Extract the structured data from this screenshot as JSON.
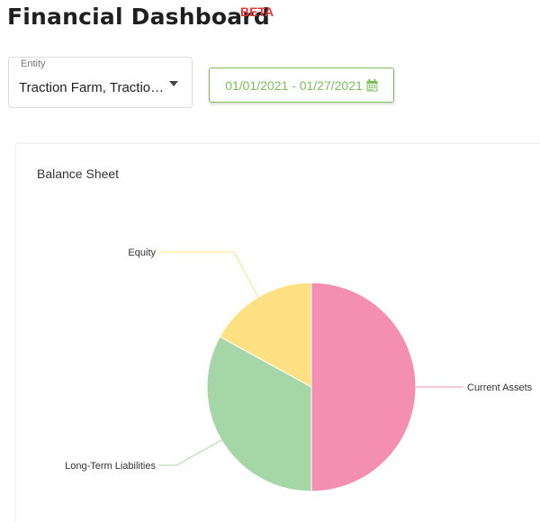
{
  "header": {
    "title": "Financial Dashboard",
    "badge": "BETA"
  },
  "filters": {
    "entity_label": "Entity",
    "entity_value": "Traction Farm, Traction Farm",
    "date_range": "01/01/2021 - 01/27/2021"
  },
  "card": {
    "title": "Balance Sheet"
  },
  "chart_data": {
    "type": "pie",
    "title": "Balance Sheet",
    "slices": [
      {
        "label": "Current Assets",
        "value": 50,
        "color": "#f48fb1"
      },
      {
        "label": "Long-Term Liabilities",
        "value": 33,
        "color": "#a5d6a7"
      },
      {
        "label": "Equity",
        "value": 17,
        "color": "#ffe082"
      }
    ],
    "legend": "none"
  },
  "icons": {
    "dropdown": "caret-down-icon",
    "calendar": "calendar-icon"
  },
  "colors": {
    "accent": "#7cbf5b",
    "beta": "#e53935"
  }
}
